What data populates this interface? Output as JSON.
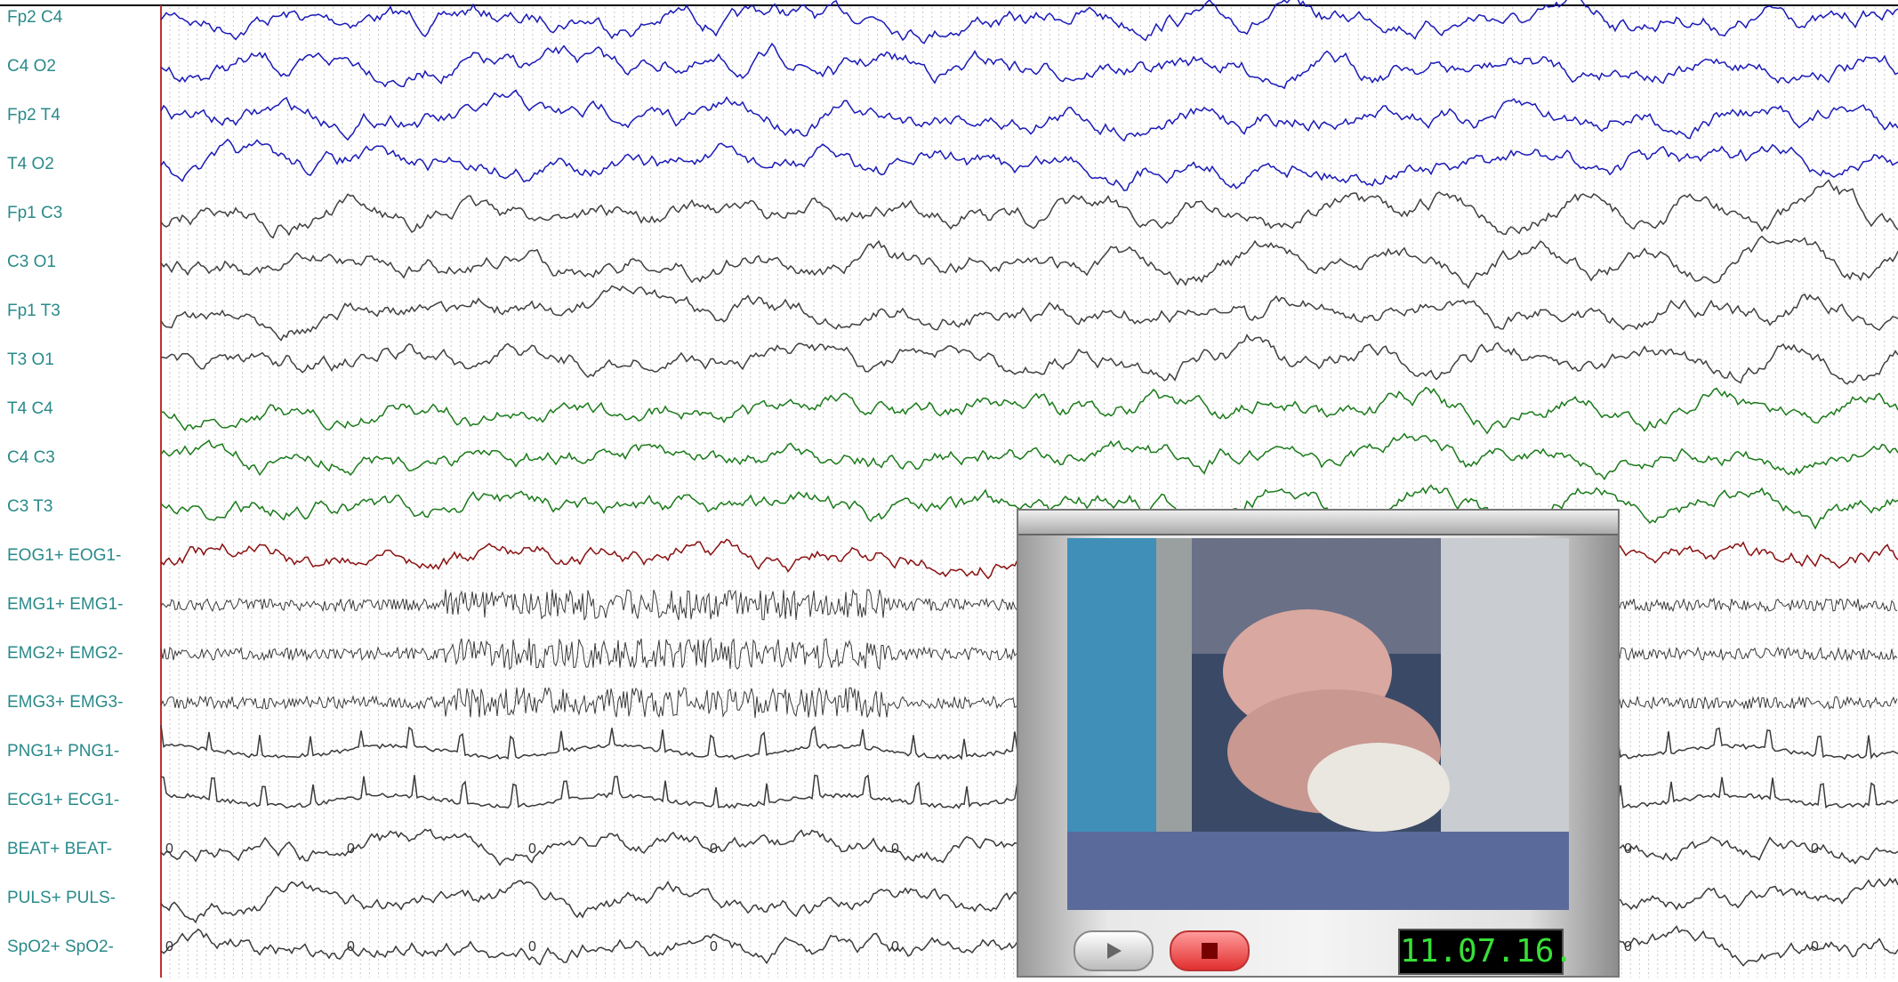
{
  "channels": [
    "Fp2 C4",
    "C4 O2",
    "Fp2 T4",
    "T4 O2",
    "Fp1 C3",
    "C3 O1",
    "Fp1 T3",
    "T3 O1",
    "T4 C4",
    "C4 C3",
    "C3 T3",
    "EOG1+ EOG1-",
    "EMG1+ EMG1-",
    "EMG2+ EMG2-",
    "EMG3+ EMG3-",
    "PNG1+ PNG1-",
    "ECG1+ ECG1-",
    "BEAT+ BEAT-",
    "PULS+ PULS-",
    "SpO2+ SpO2-"
  ],
  "beat_marks": [
    "0",
    "0",
    "0",
    "0",
    "0",
    "0",
    "0"
  ],
  "spo2_marks": [
    "0",
    "0",
    "0",
    "0",
    "0",
    "0",
    "0"
  ],
  "video": {
    "timestamp": "11.07.16."
  }
}
